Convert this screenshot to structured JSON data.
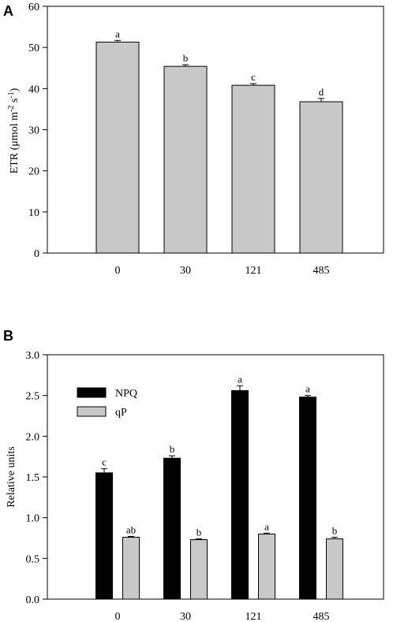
{
  "chart_data": [
    {
      "panel_label": "A",
      "type": "bar",
      "title": "",
      "xlabel": "",
      "ylabel_main": "ETR (μmol m",
      "ylabel_sup1": "-2",
      "ylabel_mid": " s",
      "ylabel_sup2": "-1",
      "ylabel_end": ")",
      "ylim": [
        0,
        60
      ],
      "yticks": [
        0,
        10,
        20,
        30,
        40,
        50,
        60
      ],
      "categories": [
        "0",
        "30",
        "121",
        "485"
      ],
      "series": [
        {
          "values": [
            51.3,
            45.4,
            40.8,
            36.8
          ],
          "errors": [
            0.4,
            0.4,
            0.4,
            0.8
          ],
          "letters": [
            "a",
            "b",
            "c",
            "d"
          ],
          "color": "#c8c8c8"
        }
      ],
      "grid": false
    },
    {
      "panel_label": "B",
      "type": "bar",
      "title": "",
      "xlabel": "",
      "ylabel": "Relative units",
      "ylim": [
        0,
        3.0
      ],
      "yticks": [
        "0.0",
        "0.5",
        "1.0",
        "1.5",
        "2.0",
        "2.5",
        "3.0"
      ],
      "categories": [
        "0",
        "30",
        "121",
        "485"
      ],
      "legend_position": "top-left",
      "series": [
        {
          "name": "NPQ",
          "values": [
            1.55,
            1.73,
            2.56,
            2.48
          ],
          "errors": [
            0.05,
            0.03,
            0.06,
            0.02
          ],
          "letters": [
            "c",
            "b",
            "a",
            "a"
          ],
          "color": "#000000"
        },
        {
          "name": "qP",
          "values": [
            0.76,
            0.73,
            0.8,
            0.74
          ],
          "errors": [
            0.01,
            0.01,
            0.01,
            0.02
          ],
          "letters": [
            "ab",
            "b",
            "a",
            "b"
          ],
          "color": "#c8c8c8"
        }
      ],
      "grid": false
    }
  ]
}
